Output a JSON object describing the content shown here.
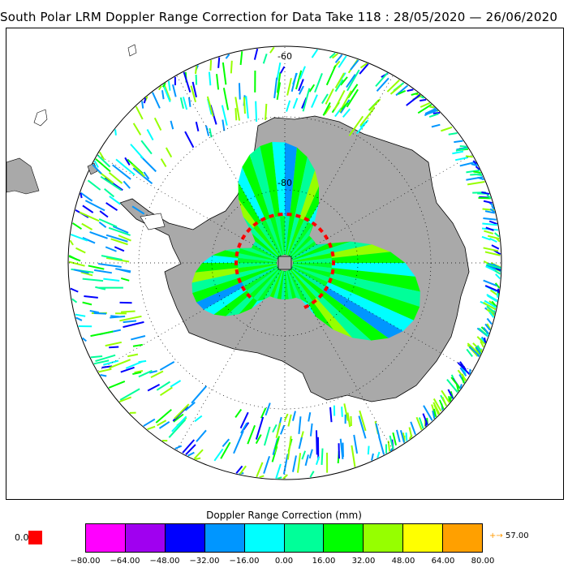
{
  "title": "South Polar LRM Doppler Range Correction for Data Take 118 : 28/05/2020 — 26/06/2020",
  "map": {
    "projection": "south polar stereographic",
    "lat_labels": [
      "-60",
      "-80"
    ],
    "land_color": "#a9a9a9",
    "graticule_style": "dotted"
  },
  "colorbar": {
    "title": "Doppler Range Correction (mm)",
    "colors": [
      "#ff00ff",
      "#a000f0",
      "#0000ff",
      "#0096ff",
      "#00ffff",
      "#00ff99",
      "#00ff00",
      "#96ff00",
      "#ffff00",
      "#ffa000"
    ],
    "ticks": [
      "−80.00",
      "−64.00",
      "−48.00",
      "−32.00",
      "−16.00",
      "0.00",
      "16.00",
      "32.00",
      "48.00",
      "64.00",
      "80.00"
    ],
    "underflow_label": "0.0",
    "underflow_color": "#ff0000",
    "overflow_arrow": "+→",
    "overflow_label": "57.00",
    "overflow_color": "#ff9900"
  }
}
